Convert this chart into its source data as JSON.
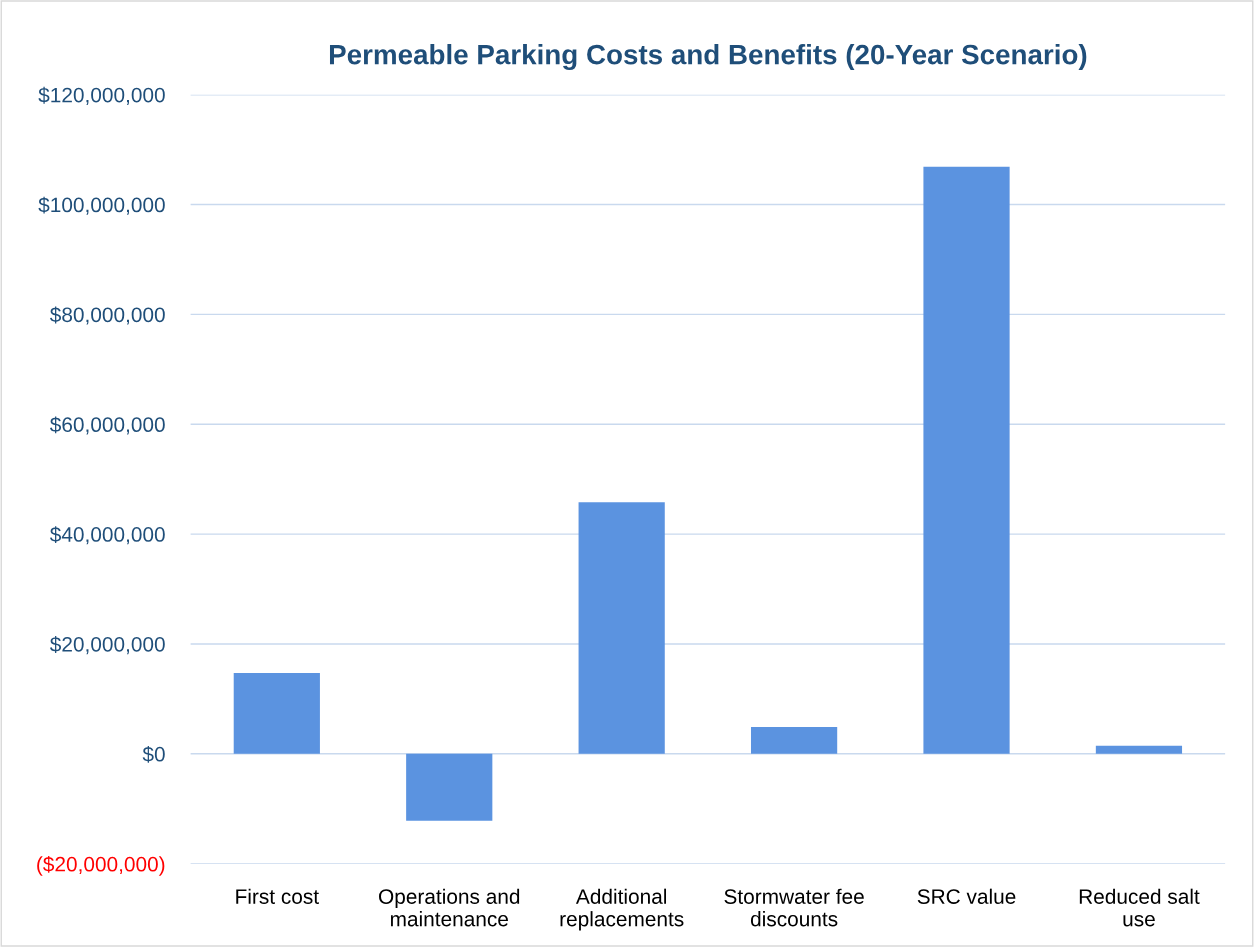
{
  "chart_data": {
    "type": "bar",
    "title": "Permeable Parking Costs and Benefits (20-Year Scenario)",
    "categories": [
      "First cost",
      "Operations and\nmaintenance",
      "Additional\nreplacements",
      "Stormwater fee\ndiscounts",
      "SRC value",
      "Reduced salt\nuse"
    ],
    "values": [
      14700000.0,
      -12200000.0,
      45800000.0,
      4900000.0,
      106900000.0,
      1450000.0
    ],
    "color": "#5b93e0",
    "ylim": [
      -20000000,
      120000000
    ],
    "yticks": [
      {
        "value": -20000000,
        "label": "($20,000,000)"
      },
      {
        "value": 0,
        "label": "$0"
      },
      {
        "value": 20000000,
        "label": "$20,000,000"
      },
      {
        "value": 40000000,
        "label": "$40,000,000"
      },
      {
        "value": 60000000,
        "label": "$60,000,000"
      },
      {
        "value": 80000000,
        "label": "$80,000,000"
      },
      {
        "value": 100000000,
        "label": "$100,000,000"
      },
      {
        "value": 120000000,
        "label": "$120,000,000"
      }
    ],
    "grid": "y"
  }
}
